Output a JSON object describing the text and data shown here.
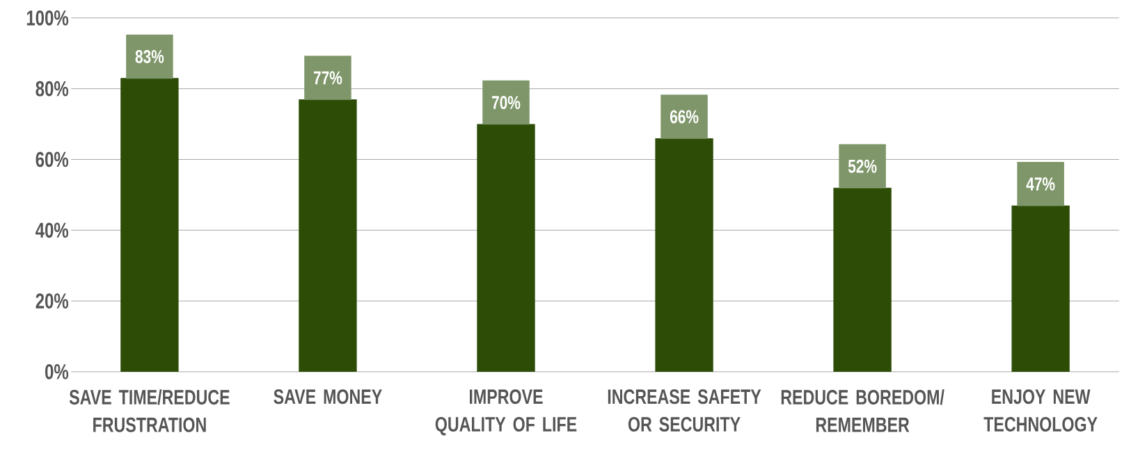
{
  "chart_data": {
    "type": "bar",
    "categories": [
      "SAVE TIME/REDUCE FRUSTRATION",
      "SAVE MONEY",
      "IMPROVE QUALITY OF LIFE",
      "INCREASE SAFETY OR SECURITY",
      "REDUCE BOREDOM/ REMEMBER",
      "ENJOY NEW TECHNOLOGY"
    ],
    "values": [
      83,
      77,
      70,
      66,
      52,
      47
    ],
    "value_labels": [
      "83%",
      "77%",
      "70%",
      "66%",
      "52%",
      "47%"
    ],
    "color": "#2d4d07",
    "ylim": [
      0,
      100
    ],
    "yticks": [
      {
        "value": 0,
        "label": "0%"
      },
      {
        "value": 20,
        "label": "20%"
      },
      {
        "value": 40,
        "label": "40%"
      },
      {
        "value": 60,
        "label": "60%"
      },
      {
        "value": 80,
        "label": "80%"
      },
      {
        "value": 100,
        "label": "100%"
      }
    ],
    "grid": "y"
  }
}
